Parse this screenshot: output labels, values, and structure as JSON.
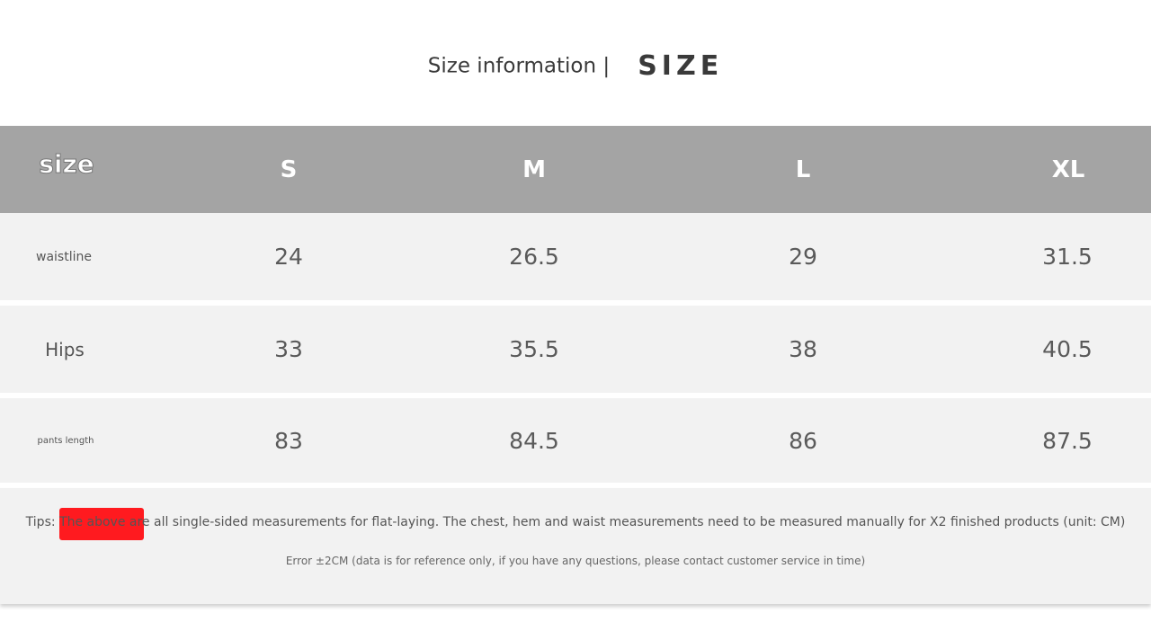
{
  "title": {
    "text": "Size information |",
    "emphasis": "SIZE"
  },
  "table": {
    "header": [
      "size",
      "S",
      "M",
      "L",
      "XL"
    ],
    "rows": [
      {
        "label": "waistline",
        "values": [
          "24",
          "26.5",
          "29",
          "31.5"
        ]
      },
      {
        "label": "Hips",
        "values": [
          "33",
          "35.5",
          "38",
          "40.5"
        ]
      },
      {
        "label": "pants length",
        "values": [
          "83",
          "84.5",
          "86",
          "87.5"
        ]
      }
    ]
  },
  "notes": {
    "tips": "Tips: The above are all single-sided measurements for flat-laying. The chest, hem and waist measurements need to be measured manually for X2 finished products (unit: CM)",
    "error": "Error ±2CM (data is for reference only, if you have any questions, please contact customer service in time)"
  },
  "colors": {
    "header_bg": "#a4a4a4",
    "row_bg": "#f2f2f2",
    "tips_highlight": "#ff1a1f"
  }
}
